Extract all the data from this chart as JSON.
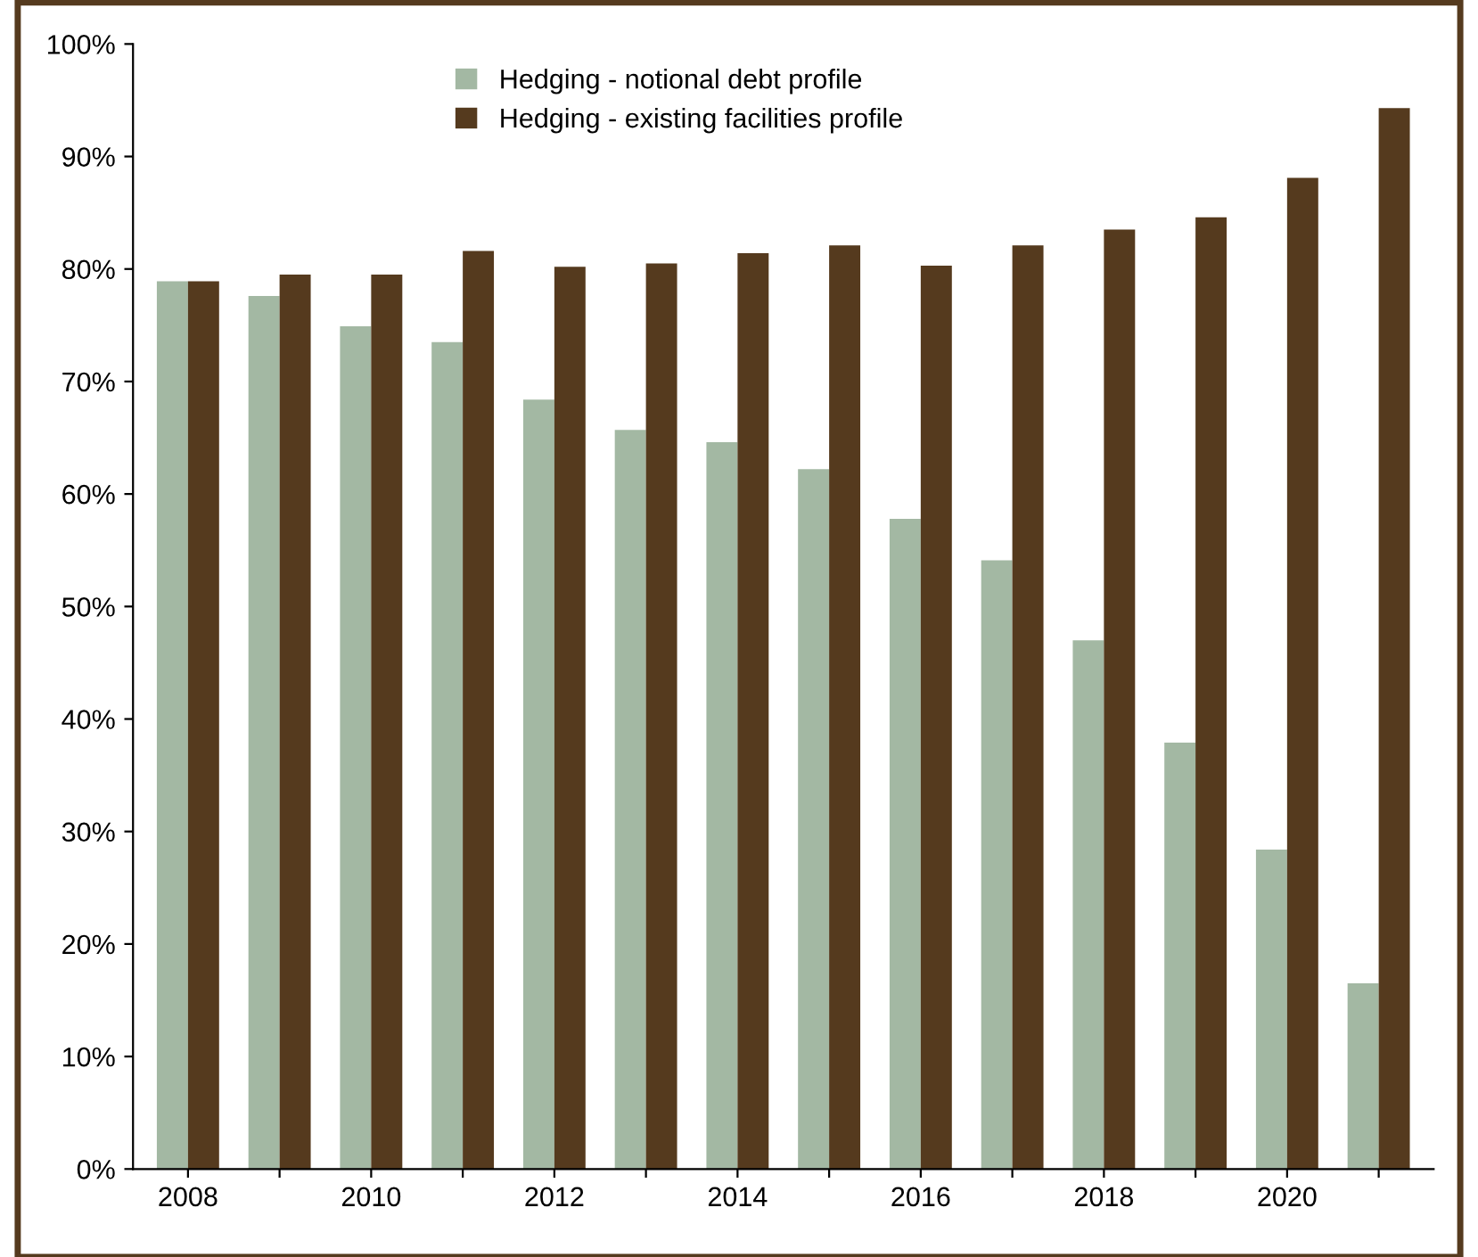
{
  "chart_data": {
    "type": "bar",
    "categories": [
      "2008",
      null,
      "2010",
      null,
      "2012",
      null,
      "2014",
      null,
      "2016",
      null,
      "2018",
      null,
      "2020",
      null
    ],
    "series": [
      {
        "name": "Hedging - notional debt profile",
        "color": "#a3b8a3",
        "values": [
          78.9,
          77.6,
          74.9,
          73.5,
          68.4,
          65.7,
          64.6,
          62.2,
          57.8,
          54.1,
          47.0,
          37.9,
          28.4,
          16.5
        ]
      },
      {
        "name": "Hedging - existing facilities profile",
        "color": "#553a1e",
        "values": [
          78.9,
          79.5,
          79.5,
          81.6,
          80.2,
          80.5,
          81.4,
          82.1,
          80.3,
          82.1,
          83.5,
          84.6,
          88.1,
          94.3
        ]
      }
    ],
    "ylim": [
      0,
      100
    ],
    "yticks": [
      {
        "value": 0,
        "label": "0%"
      },
      {
        "value": 10,
        "label": "10%"
      },
      {
        "value": 20,
        "label": "20%"
      },
      {
        "value": 30,
        "label": "30%"
      },
      {
        "value": 40,
        "label": "40%"
      },
      {
        "value": 50,
        "label": "50%"
      },
      {
        "value": 60,
        "label": "60%"
      },
      {
        "value": 70,
        "label": "70%"
      },
      {
        "value": 80,
        "label": "80%"
      },
      {
        "value": 90,
        "label": "90%"
      },
      {
        "value": 100,
        "label": "100%"
      }
    ],
    "legend": "top",
    "grid": false
  }
}
